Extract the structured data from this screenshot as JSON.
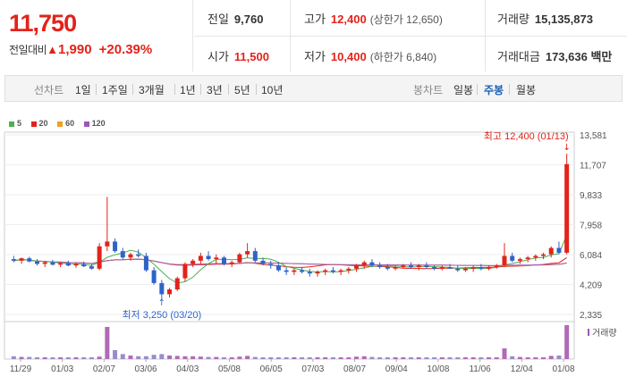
{
  "quote": {
    "price": "11,750",
    "change_label": "전일대비",
    "change": "1,990",
    "change_pct": "+20.39%"
  },
  "stats": {
    "prev": {
      "k": "전일",
      "v": "9,760"
    },
    "high": {
      "k": "고가",
      "v": "12,400",
      "note": "(상한가 12,650)"
    },
    "volume": {
      "k": "거래량",
      "v": "15,135,873"
    },
    "open": {
      "k": "시가",
      "v": "11,500"
    },
    "low": {
      "k": "저가",
      "v": "10,400",
      "note": "(하한가 6,840)"
    },
    "amount": {
      "k": "거래대금",
      "v": "173,636 백만"
    }
  },
  "toolbar": {
    "line_chart_label": "선차트",
    "periods": [
      "1일",
      "1주일",
      "3개월",
      "1년",
      "3년",
      "5년",
      "10년"
    ],
    "candle_label": "봉차트",
    "candles": [
      "일봉",
      "주봉",
      "월봉"
    ],
    "active_candle": "주봉"
  },
  "legend": [
    {
      "label": "5",
      "color": "#4caf50"
    },
    {
      "label": "20",
      "color": "#e2231a"
    },
    {
      "label": "60",
      "color": "#f0a020"
    },
    {
      "label": "120",
      "color": "#9b59b6"
    }
  ],
  "chart_data": {
    "type": "candlestick",
    "y_ticks": [
      "13,581",
      "11,707",
      "9,833",
      "7,958",
      "6,084",
      "4,209",
      "2,335"
    ],
    "ylim": [
      2335,
      13581
    ],
    "x_ticks": [
      "11/29",
      "01/03",
      "02/07",
      "03/06",
      "04/03",
      "05/08",
      "06/05",
      "07/03",
      "08/07",
      "09/04",
      "10/08",
      "11/06",
      "12/04",
      "01/08"
    ],
    "annotations": {
      "high": "최고 12,400 (01/13)",
      "low": "최저 3,250 (03/20)"
    },
    "volume_label": "거래량",
    "candles": [
      [
        5800,
        6000,
        5600,
        5700
      ],
      [
        5700,
        5900,
        5500,
        5850
      ],
      [
        5850,
        5950,
        5600,
        5650
      ],
      [
        5650,
        5800,
        5400,
        5500
      ],
      [
        5500,
        5700,
        5300,
        5600
      ],
      [
        5600,
        5750,
        5400,
        5450
      ],
      [
        5450,
        5600,
        5300,
        5550
      ],
      [
        5550,
        5700,
        5350,
        5400
      ],
      [
        5400,
        5600,
        5250,
        5500
      ],
      [
        5500,
        5650,
        5300,
        5350
      ],
      [
        5350,
        5500,
        5150,
        5200
      ],
      [
        5200,
        6800,
        5100,
        6600
      ],
      [
        6600,
        9700,
        6300,
        6900
      ],
      [
        6900,
        7100,
        6200,
        6300
      ],
      [
        6300,
        6500,
        5800,
        5900
      ],
      [
        5900,
        6200,
        5700,
        6100
      ],
      [
        6100,
        6400,
        5900,
        6000
      ],
      [
        6000,
        6200,
        5000,
        5100
      ],
      [
        5100,
        5300,
        4200,
        4300
      ],
      [
        4300,
        4500,
        3250,
        3600
      ],
      [
        3600,
        4000,
        3400,
        3900
      ],
      [
        3900,
        4700,
        3800,
        4600
      ],
      [
        4600,
        5600,
        4400,
        5500
      ],
      [
        5500,
        5800,
        5300,
        5700
      ],
      [
        5700,
        6200,
        5500,
        6000
      ],
      [
        6000,
        6300,
        5700,
        5800
      ],
      [
        5800,
        6100,
        5500,
        5900
      ],
      [
        5900,
        6000,
        5400,
        5500
      ],
      [
        5500,
        5700,
        5300,
        5600
      ],
      [
        5600,
        6200,
        5500,
        6100
      ],
      [
        6100,
        6800,
        5900,
        6300
      ],
      [
        6300,
        6500,
        5600,
        5700
      ],
      [
        5700,
        5900,
        5400,
        5500
      ],
      [
        5500,
        5700,
        5200,
        5400
      ],
      [
        5400,
        5600,
        5000,
        5100
      ],
      [
        5100,
        5300,
        4800,
        5000
      ],
      [
        5000,
        5200,
        4800,
        5100
      ],
      [
        5100,
        5300,
        4900,
        5000
      ],
      [
        5000,
        5200,
        4700,
        4900
      ],
      [
        4900,
        5100,
        4700,
        5000
      ],
      [
        5000,
        5200,
        4800,
        5100
      ],
      [
        5100,
        5300,
        4900,
        5000
      ],
      [
        5000,
        5200,
        4800,
        5100
      ],
      [
        5100,
        5300,
        4900,
        5200
      ],
      [
        5200,
        5500,
        5000,
        5400
      ],
      [
        5400,
        5700,
        5200,
        5600
      ],
      [
        5600,
        5800,
        5300,
        5400
      ],
      [
        5400,
        5600,
        5200,
        5300
      ],
      [
        5300,
        5500,
        5100,
        5200
      ],
      [
        5200,
        5400,
        5100,
        5300
      ],
      [
        5300,
        5500,
        5200,
        5400
      ],
      [
        5400,
        5600,
        5200,
        5300
      ],
      [
        5300,
        5500,
        5100,
        5400
      ],
      [
        5400,
        5600,
        5200,
        5300
      ],
      [
        5300,
        5400,
        5100,
        5200
      ],
      [
        5200,
        5400,
        5100,
        5300
      ],
      [
        5300,
        5500,
        5200,
        5200
      ],
      [
        5200,
        5400,
        5000,
        5100
      ],
      [
        5100,
        5300,
        5000,
        5200
      ],
      [
        5200,
        5400,
        5000,
        5300
      ],
      [
        5300,
        5500,
        5100,
        5200
      ],
      [
        5200,
        5400,
        5100,
        5300
      ],
      [
        5300,
        5500,
        5200,
        5400
      ],
      [
        5400,
        6800,
        5300,
        6000
      ],
      [
        6000,
        6200,
        5600,
        5700
      ],
      [
        5700,
        5900,
        5500,
        5800
      ],
      [
        5800,
        6000,
        5600,
        5900
      ],
      [
        5900,
        6100,
        5700,
        6000
      ],
      [
        6000,
        6200,
        5800,
        6100
      ],
      [
        6100,
        6600,
        5900,
        6500
      ],
      [
        6500,
        6900,
        6100,
        6200
      ],
      [
        6200,
        12400,
        6100,
        11750
      ]
    ],
    "volumes": [
      8,
      6,
      6,
      5,
      5,
      5,
      5,
      5,
      5,
      5,
      5,
      7,
      90,
      25,
      14,
      10,
      8,
      8,
      12,
      14,
      10,
      9,
      8,
      8,
      7,
      6,
      6,
      5,
      5,
      7,
      9,
      6,
      5,
      5,
      5,
      5,
      5,
      5,
      5,
      5,
      5,
      5,
      5,
      5,
      7,
      8,
      6,
      5,
      5,
      5,
      5,
      5,
      5,
      5,
      5,
      5,
      5,
      5,
      5,
      5,
      5,
      5,
      5,
      30,
      8,
      6,
      5,
      5,
      5,
      9,
      10,
      95
    ]
  }
}
